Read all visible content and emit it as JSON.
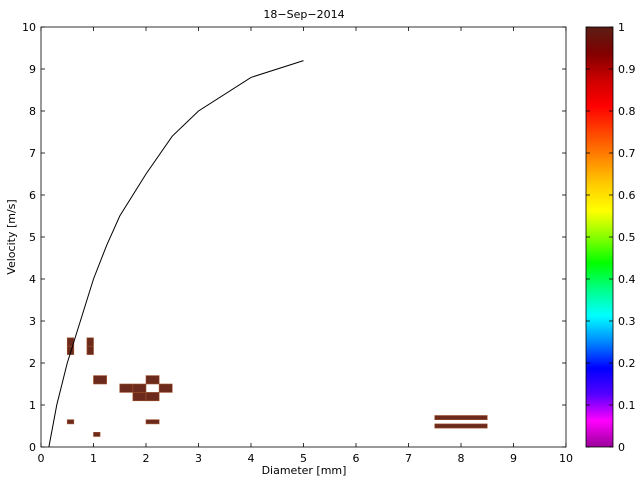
{
  "chart_data": {
    "type": "heatmap",
    "title": "18−Sep−2014",
    "xlabel": "Diameter [mm]",
    "ylabel": "Velocity [m/s]",
    "xlim": [
      0,
      10
    ],
    "ylim": [
      0,
      10
    ],
    "xticks": [
      "0",
      "1",
      "2",
      "3",
      "4",
      "5",
      "6",
      "7",
      "8",
      "9",
      "10"
    ],
    "yticks": [
      "0",
      "1",
      "2",
      "3",
      "4",
      "5",
      "6",
      "7",
      "8",
      "9",
      "10"
    ],
    "grid": false,
    "fit_curve": {
      "x": [
        0.15,
        0.3,
        0.5,
        0.75,
        1.0,
        1.25,
        1.5,
        2.0,
        2.5,
        3.0,
        4.0,
        5.0
      ],
      "y": [
        0.0,
        1.0,
        2.0,
        3.0,
        4.0,
        4.8,
        5.5,
        6.5,
        7.4,
        8.0,
        8.8,
        9.2
      ]
    },
    "cells": [
      {
        "x": 0.5,
        "y": 2.2,
        "w": 0.125,
        "h": 0.2,
        "value": 1
      },
      {
        "x": 0.5,
        "y": 2.4,
        "w": 0.125,
        "h": 0.2,
        "value": 1
      },
      {
        "x": 0.875,
        "y": 2.2,
        "w": 0.125,
        "h": 0.2,
        "value": 1
      },
      {
        "x": 0.875,
        "y": 2.4,
        "w": 0.125,
        "h": 0.2,
        "value": 1
      },
      {
        "x": 1.0,
        "y": 1.5,
        "w": 0.25,
        "h": 0.2,
        "value": 1
      },
      {
        "x": 1.5,
        "y": 1.3,
        "w": 0.25,
        "h": 0.2,
        "value": 1
      },
      {
        "x": 1.75,
        "y": 1.3,
        "w": 0.25,
        "h": 0.2,
        "value": 1
      },
      {
        "x": 1.75,
        "y": 1.1,
        "w": 0.25,
        "h": 0.2,
        "value": 1
      },
      {
        "x": 2.0,
        "y": 1.5,
        "w": 0.25,
        "h": 0.2,
        "value": 1
      },
      {
        "x": 2.0,
        "y": 1.1,
        "w": 0.25,
        "h": 0.2,
        "value": 1
      },
      {
        "x": 2.25,
        "y": 1.3,
        "w": 0.25,
        "h": 0.2,
        "value": 1
      },
      {
        "x": 0.5,
        "y": 0.55,
        "w": 0.125,
        "h": 0.1,
        "value": 1
      },
      {
        "x": 1.0,
        "y": 0.25,
        "w": 0.125,
        "h": 0.1,
        "value": 1
      },
      {
        "x": 2.0,
        "y": 0.55,
        "w": 0.25,
        "h": 0.1,
        "value": 1
      },
      {
        "x": 7.5,
        "y": 0.65,
        "w": 1.0,
        "h": 0.1,
        "value": 1
      },
      {
        "x": 7.5,
        "y": 0.45,
        "w": 1.0,
        "h": 0.1,
        "value": 1
      }
    ],
    "colorbar": {
      "range": [
        0,
        1
      ],
      "ticks": [
        "0",
        "0.1",
        "0.2",
        "0.3",
        "0.4",
        "0.5",
        "0.6",
        "0.7",
        "0.8",
        "0.9",
        "1"
      ],
      "colors": [
        "#990099",
        "#ff00ff",
        "#5500ff",
        "#0000ff",
        "#0088ff",
        "#00ffff",
        "#00ff88",
        "#00ff00",
        "#88ff00",
        "#ffff00",
        "#ffcc00",
        "#ff8800",
        "#ff4400",
        "#ff0000",
        "#cc0000",
        "#800000",
        "#5a1e14"
      ]
    },
    "cell_color": "#6b2a1c",
    "cell_edge_color": "#a0522d",
    "curve_color": "#000000"
  }
}
